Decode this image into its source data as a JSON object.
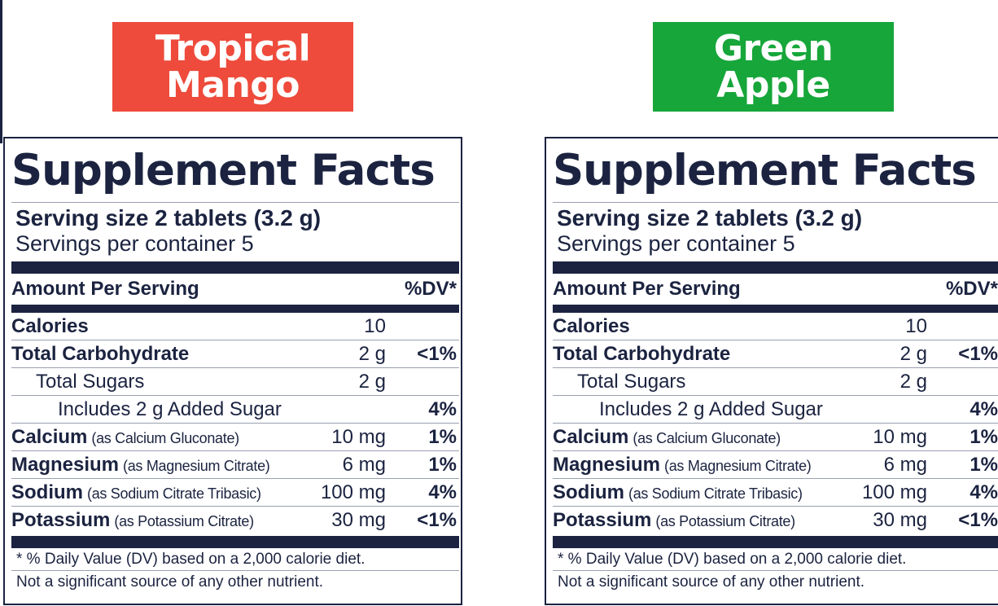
{
  "flavors": [
    {
      "name_line1": "Tropical",
      "name_line2": "Mango",
      "badge_color": "#ee4b3c"
    },
    {
      "name_line1": "Green",
      "name_line2": "Apple",
      "badge_color": "#17a63a"
    }
  ],
  "panel": {
    "title": "Supplement Facts",
    "serving_size": "Serving size 2 tablets (3.2 g)",
    "servings_per_container": "Servings per container 5",
    "amount_header": "Amount Per Serving",
    "dv_header": "%DV*",
    "rows": [
      {
        "label": "Calories",
        "note": "",
        "amount": "10",
        "dv": ""
      },
      {
        "label": "Total Carbohydrate",
        "note": "",
        "amount": "2 g",
        "dv": "<1%"
      },
      {
        "label": "Total Sugars",
        "note": "",
        "amount": "2 g",
        "dv": ""
      },
      {
        "label": "Includes 2 g Added Sugar",
        "note": "",
        "amount": "",
        "dv": "4%"
      },
      {
        "label": "Calcium",
        "note": "(as Calcium Gluconate)",
        "amount": "10 mg",
        "dv": "1%"
      },
      {
        "label": "Magnesium",
        "note": "(as Magnesium Citrate)",
        "amount": "6 mg",
        "dv": "1%"
      },
      {
        "label": "Sodium",
        "note": "(as Sodium Citrate Tribasic)",
        "amount": "100 mg",
        "dv": "4%"
      },
      {
        "label": "Potassium",
        "note": "(as Potassium Citrate)",
        "amount": "30 mg",
        "dv": "<1%"
      }
    ],
    "footnote_dv": "* % Daily Value (DV) based on a 2,000 calorie diet.",
    "footnote_other": "Not a significant source of any other nutrient."
  },
  "colors": {
    "ink": "#1b2340",
    "rule": "#9aa0b0"
  }
}
